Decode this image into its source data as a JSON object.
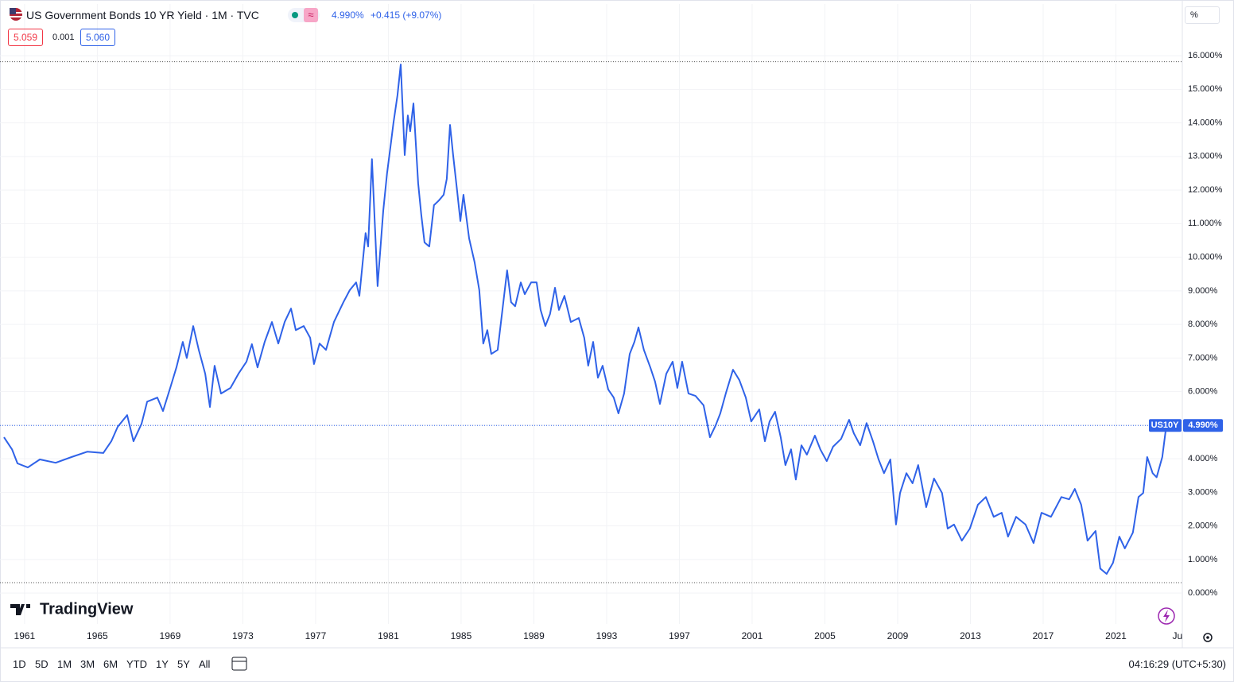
{
  "header": {
    "title": "US Government Bonds 10 YR Yield · 1M · TVC",
    "price": "4.990%",
    "change": "+0.415 (+9.07%)",
    "bid": "5.059",
    "spread": "0.001",
    "ask": "5.060",
    "unit": "%"
  },
  "logo": "TradingView",
  "toolbar": {
    "ranges": [
      "1D",
      "5D",
      "1M",
      "3M",
      "6M",
      "YTD",
      "1Y",
      "5Y",
      "All"
    ],
    "time": "04:16:29 (UTC+5:30)"
  },
  "chart_data": {
    "type": "line",
    "symbol": "US10Y",
    "color": "#2f62e8",
    "grid": true,
    "log_scale": false,
    "xlim": [
      1959.65,
      2024.65
    ],
    "ylim": [
      -0.92,
      17.54
    ],
    "xticks": [
      1961,
      1965,
      1969,
      1973,
      1977,
      1981,
      1985,
      1989,
      1993,
      1997,
      2001,
      2005,
      2009,
      2013,
      2017,
      2021,
      {
        "value": 2024.38,
        "label": "Ju"
      }
    ],
    "yticks": [
      {
        "value": 0,
        "label": "0.000%"
      },
      {
        "value": 1,
        "label": "1.000%"
      },
      {
        "value": 2,
        "label": "2.000%"
      },
      {
        "value": 3,
        "label": "3.000%"
      },
      {
        "value": 4,
        "label": "4.000%"
      },
      {
        "value": 5,
        "label": "5.000%"
      },
      {
        "value": 6,
        "label": "6.000%"
      },
      {
        "value": 7,
        "label": "7.000%"
      },
      {
        "value": 8,
        "label": "8.000%"
      },
      {
        "value": 9,
        "label": "9.000%"
      },
      {
        "value": 10,
        "label": "10.000%"
      },
      {
        "value": 11,
        "label": "11.000%"
      },
      {
        "value": 12,
        "label": "12.000%"
      },
      {
        "value": 13,
        "label": "13.000%"
      },
      {
        "value": 14,
        "label": "14.000%"
      },
      {
        "value": 15,
        "label": "15.000%"
      },
      {
        "value": 16,
        "label": "16.000%"
      }
    ],
    "last": {
      "value": 4.99,
      "label": "4.990%"
    },
    "max_line": 15.82,
    "min_line": 0.31,
    "x": [
      1959.87,
      1960.31,
      1960.61,
      1961.18,
      1961.84,
      1962.71,
      1963.58,
      1964.46,
      1965.33,
      1965.77,
      1966.12,
      1966.64,
      1966.99,
      1967.43,
      1967.74,
      1968.3,
      1968.61,
      1969.05,
      1969.35,
      1969.7,
      1969.92,
      1970.27,
      1970.58,
      1970.93,
      1971.19,
      1971.45,
      1971.8,
      1972.32,
      1972.76,
      1973.2,
      1973.5,
      1973.81,
      1974.2,
      1974.6,
      1974.95,
      1975.3,
      1975.65,
      1975.91,
      1976.35,
      1976.7,
      1976.91,
      1977.22,
      1977.57,
      1978.01,
      1978.53,
      1978.88,
      1979.23,
      1979.41,
      1979.75,
      1979.89,
      1980.1,
      1980.41,
      1980.72,
      1980.93,
      1981.15,
      1981.28,
      1981.5,
      1981.68,
      1981.9,
      1982.07,
      1982.2,
      1982.38,
      1982.64,
      1982.81,
      1982.99,
      1983.25,
      1983.51,
      1983.78,
      1984.04,
      1984.21,
      1984.39,
      1984.56,
      1984.78,
      1984.96,
      1985.13,
      1985.44,
      1985.74,
      1986.0,
      1986.22,
      1986.44,
      1986.66,
      1987.01,
      1987.27,
      1987.53,
      1987.75,
      1987.97,
      1988.28,
      1988.5,
      1988.85,
      1989.15,
      1989.37,
      1989.63,
      1989.89,
      1990.16,
      1990.38,
      1990.68,
      1991.03,
      1991.47,
      1991.77,
      1991.99,
      1992.26,
      1992.52,
      1992.78,
      1993.09,
      1993.39,
      1993.65,
      1993.96,
      1994.27,
      1994.53,
      1994.75,
      1995.05,
      1995.4,
      1995.66,
      1995.93,
      1996.28,
      1996.63,
      1996.89,
      1997.15,
      1997.5,
      1997.89,
      1998.33,
      1998.68,
      1998.99,
      1999.25,
      1999.55,
      1999.95,
      2000.3,
      2000.65,
      2000.95,
      2001.39,
      2001.7,
      2001.96,
      2002.26,
      2002.57,
      2002.83,
      2003.14,
      2003.4,
      2003.71,
      2004.01,
      2004.45,
      2004.75,
      2005.1,
      2005.45,
      2005.89,
      2006.33,
      2006.59,
      2006.94,
      2007.29,
      2007.64,
      2007.95,
      2008.25,
      2008.6,
      2008.91,
      2009.13,
      2009.48,
      2009.82,
      2010.13,
      2010.57,
      2011.0,
      2011.44,
      2011.75,
      2012.1,
      2012.53,
      2012.97,
      2013.41,
      2013.85,
      2014.28,
      2014.72,
      2015.07,
      2015.51,
      2016.03,
      2016.47,
      2016.91,
      2017.43,
      2018.0,
      2018.43,
      2018.74,
      2019.09,
      2019.44,
      2019.88,
      2020.14,
      2020.49,
      2020.84,
      2021.19,
      2021.49,
      2021.93,
      2022.24,
      2022.5,
      2022.72,
      2023.02,
      2023.24,
      2023.55,
      2023.77
    ],
    "values": [
      4.64,
      4.28,
      3.86,
      3.74,
      3.98,
      3.88,
      4.05,
      4.21,
      4.17,
      4.52,
      4.95,
      5.3,
      4.52,
      5.04,
      5.7,
      5.82,
      5.42,
      6.18,
      6.72,
      7.48,
      7.0,
      7.95,
      7.24,
      6.53,
      5.54,
      6.77,
      5.94,
      6.11,
      6.53,
      6.89,
      7.41,
      6.72,
      7.48,
      8.07,
      7.43,
      8.07,
      8.47,
      7.83,
      7.95,
      7.6,
      6.82,
      7.43,
      7.24,
      8.07,
      8.66,
      9.02,
      9.25,
      8.85,
      10.72,
      10.32,
      12.92,
      9.14,
      11.38,
      12.5,
      13.44,
      13.99,
      14.82,
      15.74,
      13.04,
      14.22,
      13.75,
      14.58,
      12.21,
      11.27,
      10.44,
      10.32,
      11.55,
      11.69,
      11.86,
      12.33,
      13.94,
      13.04,
      11.98,
      11.08,
      11.86,
      10.56,
      9.85,
      9.02,
      7.43,
      7.83,
      7.12,
      7.24,
      8.43,
      9.61,
      8.66,
      8.54,
      9.25,
      8.9,
      9.25,
      9.25,
      8.43,
      7.95,
      8.31,
      9.09,
      8.43,
      8.85,
      8.07,
      8.19,
      7.6,
      6.77,
      7.48,
      6.41,
      6.77,
      6.06,
      5.82,
      5.35,
      5.94,
      7.12,
      7.48,
      7.91,
      7.24,
      6.72,
      6.3,
      5.63,
      6.53,
      6.89,
      6.11,
      6.89,
      5.94,
      5.87,
      5.59,
      4.64,
      4.99,
      5.35,
      5.94,
      6.65,
      6.34,
      5.82,
      5.11,
      5.47,
      4.52,
      5.11,
      5.4,
      4.64,
      3.81,
      4.28,
      3.38,
      4.4,
      4.12,
      4.69,
      4.28,
      3.93,
      4.36,
      4.59,
      5.16,
      4.76,
      4.4,
      5.06,
      4.52,
      3.98,
      3.57,
      3.98,
      2.04,
      2.98,
      3.57,
      3.27,
      3.81,
      2.56,
      3.41,
      2.98,
      1.92,
      2.04,
      1.56,
      1.92,
      2.63,
      2.86,
      2.27,
      2.39,
      1.68,
      2.27,
      2.04,
      1.49,
      2.39,
      2.27,
      2.86,
      2.79,
      3.1,
      2.63,
      1.56,
      1.85,
      0.73,
      0.57,
      0.9,
      1.68,
      1.33,
      1.8,
      2.86,
      2.98,
      4.05,
      3.57,
      3.45,
      4.05,
      4.99
    ]
  }
}
